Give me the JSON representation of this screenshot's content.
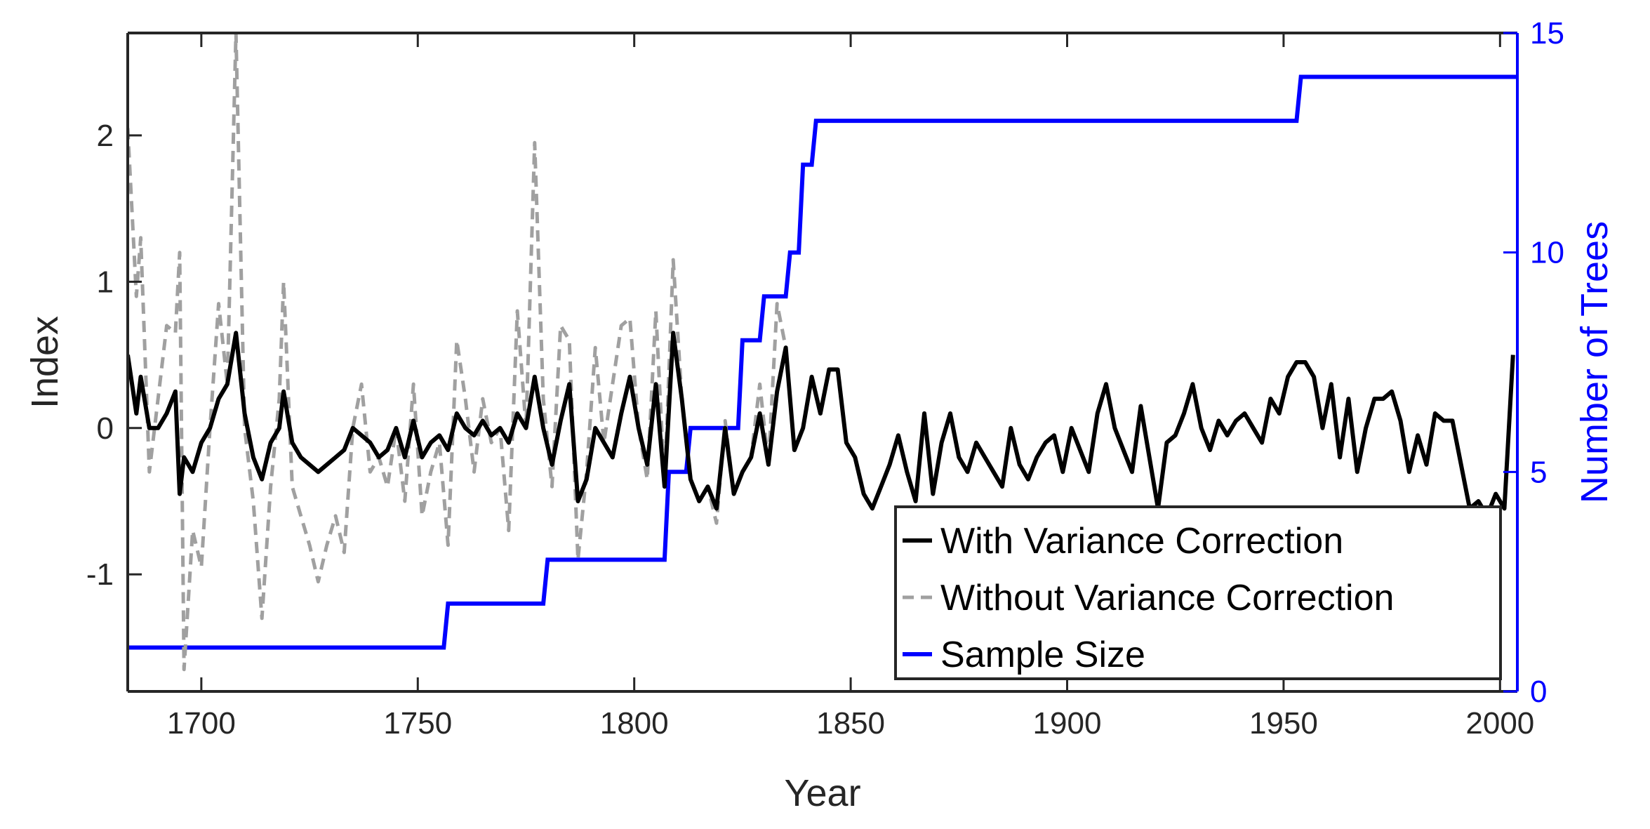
{
  "chart_data": {
    "type": "line",
    "xlabel": "Year",
    "ylabel": "Index",
    "y2label": "Number of Trees",
    "xlim": [
      1683,
      2004
    ],
    "ylim": [
      -1.8,
      2.7
    ],
    "y2lim": [
      0,
      15
    ],
    "xticks": [
      1700,
      1750,
      1800,
      1850,
      1900,
      1950,
      2000
    ],
    "yticks": [
      -1,
      0,
      1,
      2
    ],
    "y2ticks": [
      0,
      5,
      10,
      15
    ],
    "legend_position": "bottom-right",
    "series": [
      {
        "name": "With Variance Correction",
        "style": "solid",
        "color": "#000000",
        "axis": "left",
        "x": [
          1683,
          1685,
          1686,
          1688,
          1690,
          1692,
          1694,
          1695,
          1696,
          1698,
          1700,
          1702,
          1704,
          1706,
          1708,
          1710,
          1712,
          1714,
          1716,
          1718,
          1719,
          1721,
          1723,
          1725,
          1727,
          1729,
          1731,
          1733,
          1735,
          1737,
          1739,
          1741,
          1743,
          1745,
          1747,
          1749,
          1751,
          1753,
          1755,
          1757,
          1759,
          1761,
          1763,
          1765,
          1767,
          1769,
          1771,
          1773,
          1775,
          1777,
          1779,
          1781,
          1783,
          1785,
          1787,
          1789,
          1791,
          1793,
          1795,
          1797,
          1799,
          1801,
          1803,
          1805,
          1807,
          1809,
          1811,
          1813,
          1815,
          1817,
          1819,
          1821,
          1823,
          1825,
          1827,
          1829,
          1831,
          1833,
          1835,
          1837,
          1839,
          1841,
          1843,
          1845,
          1847,
          1849,
          1851,
          1853,
          1855,
          1857,
          1859,
          1861,
          1863,
          1865,
          1867,
          1869,
          1871,
          1873,
          1875,
          1877,
          1879,
          1881,
          1883,
          1885,
          1887,
          1889,
          1891,
          1893,
          1895,
          1897,
          1899,
          1901,
          1903,
          1905,
          1907,
          1909,
          1911,
          1913,
          1915,
          1917,
          1919,
          1921,
          1923,
          1925,
          1927,
          1929,
          1931,
          1933,
          1935,
          1937,
          1939,
          1941,
          1943,
          1945,
          1947,
          1949,
          1951,
          1953,
          1955,
          1957,
          1959,
          1961,
          1963,
          1965,
          1967,
          1969,
          1971,
          1973,
          1975,
          1977,
          1979,
          1981,
          1983,
          1985,
          1987,
          1989,
          1991,
          1993,
          1995,
          1997,
          1999,
          2001,
          2003
        ],
        "values": [
          0.5,
          0.1,
          0.35,
          0.0,
          0.0,
          0.1,
          0.25,
          -0.45,
          -0.2,
          -0.3,
          -0.1,
          0.0,
          0.2,
          0.3,
          0.65,
          0.1,
          -0.2,
          -0.35,
          -0.1,
          0.0,
          0.25,
          -0.1,
          -0.2,
          -0.25,
          -0.3,
          -0.25,
          -0.2,
          -0.15,
          0.0,
          -0.05,
          -0.1,
          -0.2,
          -0.15,
          0.0,
          -0.2,
          0.05,
          -0.2,
          -0.1,
          -0.05,
          -0.15,
          0.1,
          0.0,
          -0.05,
          0.05,
          -0.05,
          0.0,
          -0.1,
          0.1,
          0.0,
          0.35,
          0.0,
          -0.25,
          0.05,
          0.3,
          -0.5,
          -0.35,
          0.0,
          -0.1,
          -0.2,
          0.1,
          0.35,
          0.0,
          -0.25,
          0.3,
          -0.4,
          0.65,
          0.2,
          -0.35,
          -0.5,
          -0.4,
          -0.55,
          0.0,
          -0.45,
          -0.3,
          -0.2,
          0.1,
          -0.25,
          0.25,
          0.55,
          -0.15,
          0.0,
          0.35,
          0.1,
          0.4,
          0.4,
          -0.1,
          -0.2,
          -0.45,
          -0.55,
          -0.4,
          -0.25,
          -0.05,
          -0.3,
          -0.5,
          0.1,
          -0.45,
          -0.1,
          0.1,
          -0.2,
          -0.3,
          -0.1,
          -0.2,
          -0.3,
          -0.4,
          0.0,
          -0.25,
          -0.35,
          -0.2,
          -0.1,
          -0.05,
          -0.3,
          0.0,
          -0.15,
          -0.3,
          0.1,
          0.3,
          0.0,
          -0.15,
          -0.3,
          0.15,
          -0.2,
          -0.55,
          -0.1,
          -0.05,
          0.1,
          0.3,
          0.0,
          -0.15,
          0.05,
          -0.05,
          0.05,
          0.1,
          0.0,
          -0.1,
          0.2,
          0.1,
          0.35,
          0.45,
          0.45,
          0.35,
          0.0,
          0.3,
          -0.2,
          0.2,
          -0.3,
          0.0,
          0.2,
          0.2,
          0.25,
          0.05,
          -0.3,
          -0.05,
          -0.25,
          0.1,
          0.05,
          0.05,
          -0.25,
          -0.55,
          -0.5,
          -0.6,
          -0.45,
          -0.55,
          0.5
        ]
      },
      {
        "name": "Without Variance Correction",
        "style": "dashed",
        "color": "#a0a0a0",
        "axis": "left",
        "x": [
          1683,
          1685,
          1686,
          1688,
          1690,
          1692,
          1694,
          1695,
          1696,
          1698,
          1700,
          1702,
          1704,
          1706,
          1708,
          1710,
          1712,
          1714,
          1716,
          1718,
          1719,
          1721,
          1723,
          1725,
          1727,
          1729,
          1731,
          1733,
          1735,
          1737,
          1739,
          1741,
          1743,
          1745,
          1747,
          1749,
          1751,
          1753,
          1755,
          1757,
          1759,
          1761,
          1763,
          1765,
          1767,
          1769,
          1771,
          1773,
          1775,
          1777,
          1779,
          1781,
          1783,
          1785,
          1787,
          1789,
          1791,
          1793,
          1795,
          1797,
          1799,
          1801,
          1803,
          1805,
          1807,
          1809,
          1811,
          1813,
          1815,
          1817,
          1819,
          1821,
          1823,
          1825,
          1827,
          1829,
          1831,
          1833,
          1835,
          1837,
          1839,
          1841,
          1843,
          1845,
          1847,
          1849,
          1851,
          1853,
          1855,
          1857,
          1859,
          1861,
          1863,
          1865,
          1867,
          1869,
          1871,
          1873,
          1875,
          1877,
          1879,
          1881,
          1883,
          1885,
          1887,
          1889,
          1891,
          1893,
          1895,
          1897,
          1899,
          1901,
          1903,
          1905,
          1907,
          1909,
          1911,
          1913,
          1915,
          1917,
          1919,
          1921,
          1923,
          1925,
          1927,
          1929,
          1931,
          1933,
          1935,
          1937,
          1939,
          1941,
          1943,
          1945,
          1947,
          1949,
          1951,
          1953,
          1955,
          1957,
          1959,
          1961,
          1963,
          1965,
          1967,
          1969,
          1971,
          1973,
          1975,
          1977,
          1979,
          1981,
          1983,
          1985,
          1987,
          1989,
          1991,
          1993,
          1995,
          1997,
          1999,
          2001,
          2003
        ],
        "values": [
          2.05,
          0.9,
          1.3,
          -0.3,
          0.2,
          0.7,
          0.65,
          1.2,
          -1.65,
          -0.7,
          -0.95,
          0.0,
          0.85,
          0.3,
          2.7,
          0.0,
          -0.5,
          -1.3,
          -0.4,
          0.2,
          1.0,
          -0.4,
          -0.6,
          -0.8,
          -1.05,
          -0.8,
          -0.6,
          -0.85,
          0.0,
          0.3,
          -0.3,
          -0.2,
          -0.4,
          0.0,
          -0.5,
          0.3,
          -0.6,
          -0.3,
          -0.1,
          -0.8,
          0.6,
          0.2,
          -0.3,
          0.2,
          -0.1,
          0.0,
          -0.7,
          0.8,
          0.0,
          1.95,
          0.2,
          -0.4,
          0.7,
          0.6,
          -0.9,
          -0.3,
          0.55,
          -0.1,
          0.3,
          0.7,
          0.75,
          0.0,
          -0.35,
          0.8,
          -0.4,
          1.15,
          0.2,
          -0.35,
          -0.5,
          -0.4,
          -0.65,
          0.05,
          -0.45,
          -0.3,
          -0.2,
          0.3,
          -0.25,
          0.85,
          0.55,
          -0.15,
          0.0,
          0.35,
          0.1,
          0.4,
          0.4,
          -0.1,
          -0.2,
          -0.45,
          -0.55,
          -0.4,
          -0.25,
          -0.05,
          -0.3,
          -0.5,
          0.1,
          -0.45,
          -0.1,
          0.1,
          -0.2,
          -0.3,
          -0.1,
          -0.2,
          -0.3,
          -0.4,
          0.0,
          -0.25,
          -0.35,
          -0.2,
          -0.1,
          -0.05,
          -0.3,
          0.0,
          -0.15,
          -0.3,
          0.1,
          0.3,
          0.0,
          -0.15,
          -0.3,
          0.15,
          -0.2,
          -0.55,
          -0.1,
          -0.05,
          0.1,
          0.3,
          0.0,
          -0.15,
          0.05,
          -0.05,
          0.05,
          0.1,
          0.0,
          -0.1,
          0.2,
          0.1,
          0.35,
          0.45,
          0.45,
          0.35,
          0.0,
          0.3,
          -0.2,
          0.2,
          -0.3,
          0.0,
          0.2,
          0.2,
          0.25,
          0.05,
          -0.3,
          -0.05,
          -0.25,
          0.1,
          0.05,
          0.05,
          -0.25,
          -0.55,
          -0.5,
          -0.6,
          -0.45,
          -0.55,
          0.5
        ]
      },
      {
        "name": "Sample Size",
        "style": "step",
        "color": "#0000ff",
        "axis": "right",
        "x": [
          1683,
          1756,
          1757,
          1779,
          1780,
          1807,
          1808,
          1812,
          1813,
          1824,
          1825,
          1829,
          1830,
          1835,
          1836,
          1838,
          1839,
          1841,
          1842,
          1844,
          1845,
          1953,
          1954,
          2004
        ],
        "values": [
          1,
          1,
          2,
          2,
          3,
          3,
          5,
          5,
          6,
          6,
          8,
          8,
          9,
          9,
          10,
          10,
          12,
          12,
          13,
          13,
          13,
          13,
          14,
          14
        ]
      }
    ]
  },
  "legend": {
    "entries": [
      {
        "label": "With Variance Correction",
        "color": "#000000",
        "style": "solid"
      },
      {
        "label": "Without Variance Correction",
        "color": "#a0a0a0",
        "style": "dashed"
      },
      {
        "label": "Sample Size",
        "color": "#0000ff",
        "style": "solid"
      }
    ]
  }
}
